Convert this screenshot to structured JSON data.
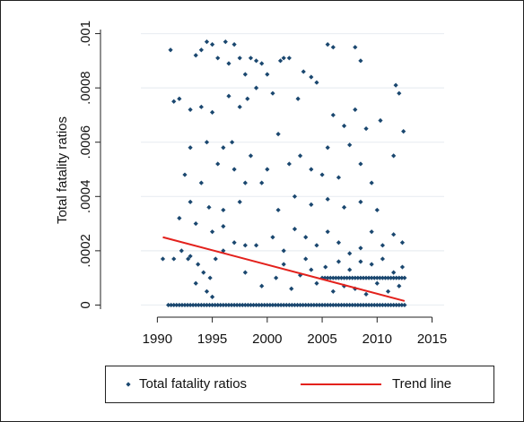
{
  "chart_data": {
    "type": "scatter",
    "y_label": "Total fatality ratios",
    "xlim": [
      1988.5,
      2016.1
    ],
    "xticks": [
      1990,
      1995,
      2000,
      2005,
      2010,
      2015
    ],
    "ylim": [
      -1.5e-05,
      0.001015
    ],
    "yticks": [
      0,
      {
        "value": 0.0002,
        "label": ".0002"
      },
      {
        "value": 0.0004,
        "label": ".0004"
      },
      {
        "value": 0.0006,
        "label": ".0006"
      },
      {
        "value": 0.0008,
        "label": ".0008"
      },
      {
        "value": 0.001,
        "label": ".001"
      }
    ],
    "grid": true,
    "legend": "bottom",
    "series": [
      {
        "name": "Total fatality ratios",
        "type": "scatter",
        "color": "#1a476f",
        "x": [
          1991,
          1991.25,
          1991.5,
          1991.75,
          1992,
          1992.25,
          1992.5,
          1992.75,
          1993,
          1993.25,
          1993.5,
          1993.75,
          1994,
          1994.25,
          1994.5,
          1994.75,
          1995,
          1995.25,
          1995.5,
          1995.75,
          1996,
          1996.25,
          1996.5,
          1996.75,
          1997,
          1997.25,
          1997.5,
          1997.75,
          1998,
          1998.25,
          1998.5,
          1998.75,
          1999,
          1999.25,
          1999.5,
          1999.75,
          2000,
          2000.25,
          2000.5,
          2000.75,
          2001,
          2001.25,
          2001.5,
          2001.75,
          2002,
          2002.25,
          2002.5,
          2002.75,
          2003,
          2003.25,
          2003.5,
          2003.75,
          2004,
          2004.25,
          2004.5,
          2004.75,
          2005,
          2005.25,
          2005.5,
          2005.75,
          2006,
          2006.25,
          2006.5,
          2006.75,
          2007,
          2007.25,
          2007.5,
          2007.75,
          2008,
          2008.25,
          2008.5,
          2008.75,
          2009,
          2009.25,
          2009.5,
          2009.75,
          2010,
          2010.25,
          2010.5,
          2010.75,
          2011,
          2011.25,
          2011.5,
          2011.75,
          2012,
          2012.25,
          2012.5,
          2005,
          2005.25,
          2005.5,
          2005.75,
          2006,
          2006.25,
          2006.5,
          2006.75,
          2007,
          2007.25,
          2007.5,
          2007.75,
          2008,
          2008.25,
          2008.5,
          2008.75,
          2009,
          2009.25,
          2009.5,
          2009.75,
          2010,
          2010.25,
          2010.5,
          2010.75,
          2011,
          2011.25,
          2011.5,
          2011.75,
          2012,
          2012.25,
          2012.5,
          1991.2,
          1993.5,
          1994,
          1994.5,
          1995,
          1995.5,
          1996.2,
          1996.5,
          1997,
          1997.5,
          1998,
          1998.5,
          1999,
          1999.5,
          2000,
          2001.2,
          2001.5,
          2002,
          2003.3,
          2004,
          2005.5,
          2006,
          2008,
          2008.5,
          2011.7,
          2012,
          1991.5,
          1992,
          1993,
          1994,
          1995,
          1996.5,
          1997.5,
          1998.2,
          1999,
          2000.5,
          2002.8,
          2004.5,
          2006,
          2007,
          2008,
          2009,
          2010.3,
          2012.4,
          1993,
          1994.5,
          1996,
          1996.8,
          1998.5,
          2001,
          2003,
          2005.5,
          2007.5,
          2011.5,
          1992.5,
          1994,
          1995.5,
          1997,
          1998,
          1999.5,
          2000,
          2002,
          2004,
          2005,
          2006.5,
          2008.5,
          2009.5,
          1993,
          1994.7,
          1996,
          1997.5,
          2001,
          2002.5,
          2004,
          2005.5,
          2007,
          2008.5,
          2010,
          1992,
          1993.5,
          1995,
          1996,
          1997,
          1998,
          1999,
          2000.5,
          2001.5,
          2002.5,
          2003.5,
          2004.5,
          2005.5,
          2006.5,
          2007.5,
          2008.5,
          2009.5,
          2010.5,
          2011.5,
          2012.3,
          1993,
          1993.7,
          1994.2,
          1994.8,
          1995.3,
          1996,
          1993.5,
          1994.5,
          1995,
          1992.2,
          1992.8,
          2003,
          2004,
          2004.5,
          2005.3,
          2003.5,
          2000.8,
          2001.5,
          2002.2,
          2006.5,
          2007.5,
          2008.5,
          2009.5,
          2010.5,
          2011.5,
          2012.3,
          2006,
          2007,
          2008,
          2009,
          2010,
          2011,
          2012,
          1991.5,
          1990.5,
          1999.5,
          1998
        ],
        "values": [
          0,
          0,
          0,
          0,
          0,
          0,
          0,
          0,
          0,
          0,
          0,
          0,
          0,
          0,
          0,
          0,
          0,
          0,
          0,
          0,
          0,
          0,
          0,
          0,
          0,
          0,
          0,
          0,
          0,
          0,
          0,
          0,
          0,
          0,
          0,
          0,
          0,
          0,
          0,
          0,
          0,
          0,
          0,
          0,
          0,
          0,
          0,
          0,
          0,
          0,
          0,
          0,
          0,
          0,
          0,
          0,
          0,
          0,
          0,
          0,
          0,
          0,
          0,
          0,
          0,
          0,
          0,
          0,
          0,
          0,
          0,
          0,
          0,
          0,
          0,
          0,
          0,
          0,
          0,
          0,
          0,
          0,
          0,
          0,
          0,
          0,
          0,
          0.0001,
          0.0001,
          0.0001,
          0.0001,
          0.0001,
          0.0001,
          0.0001,
          0.0001,
          0.0001,
          0.0001,
          0.0001,
          0.0001,
          0.0001,
          0.0001,
          0.0001,
          0.0001,
          0.0001,
          0.0001,
          0.0001,
          0.0001,
          0.0001,
          0.0001,
          0.0001,
          0.0001,
          0.0001,
          0.0001,
          0.0001,
          0.0001,
          0.0001,
          0.0001,
          0.0001,
          0.00094,
          0.00092,
          0.00094,
          0.00097,
          0.00096,
          0.00091,
          0.00097,
          0.00089,
          0.00096,
          0.00091,
          0.00085,
          0.00091,
          0.0009,
          0.00089,
          0.00085,
          0.0009,
          0.00091,
          0.00091,
          0.00086,
          0.00084,
          0.00096,
          0.00095,
          0.00095,
          0.0009,
          0.00081,
          0.00078,
          0.00075,
          0.00076,
          0.00072,
          0.00073,
          0.00071,
          0.00077,
          0.00073,
          0.00076,
          0.0008,
          0.00078,
          0.00076,
          0.00082,
          0.0007,
          0.00066,
          0.00072,
          0.00065,
          0.00068,
          0.00064,
          0.00058,
          0.0006,
          0.00058,
          0.0006,
          0.00055,
          0.00063,
          0.00055,
          0.00058,
          0.00059,
          0.00055,
          0.00048,
          0.00045,
          0.00052,
          0.0005,
          0.00045,
          0.00045,
          0.0005,
          0.00052,
          0.0005,
          0.00048,
          0.00047,
          0.00052,
          0.00045,
          0.00038,
          0.00036,
          0.00035,
          0.00038,
          0.00035,
          0.0004,
          0.00037,
          0.00039,
          0.00036,
          0.00038,
          0.00035,
          0.00032,
          0.0003,
          0.00027,
          0.00029,
          0.00023,
          0.00022,
          0.00022,
          0.00025,
          0.0002,
          0.00028,
          0.00025,
          0.00022,
          0.00027,
          0.00023,
          0.00019,
          0.00021,
          0.00027,
          0.00022,
          0.00026,
          0.00023,
          0.00018,
          0.00015,
          0.00012,
          0.0001,
          0.00017,
          0.0002,
          8e-05,
          5e-05,
          3e-05,
          0.0002,
          0.00017,
          0.00011,
          0.00013,
          8e-05,
          0.00014,
          0.00017,
          0.0001,
          0.00015,
          6e-05,
          0.00016,
          0.00013,
          0.00016,
          0.00015,
          0.00017,
          0.00012,
          0.00014,
          5e-05,
          7e-05,
          6e-05,
          4e-05,
          8e-05,
          5e-05,
          7e-05,
          0.00017,
          0.00017,
          7e-05,
          0.00012
        ]
      },
      {
        "name": "Trend line",
        "type": "line",
        "color": "#e3211c",
        "x": [
          1990.5,
          2012.5
        ],
        "values": [
          0.00025,
          1.5e-05
        ]
      }
    ]
  }
}
